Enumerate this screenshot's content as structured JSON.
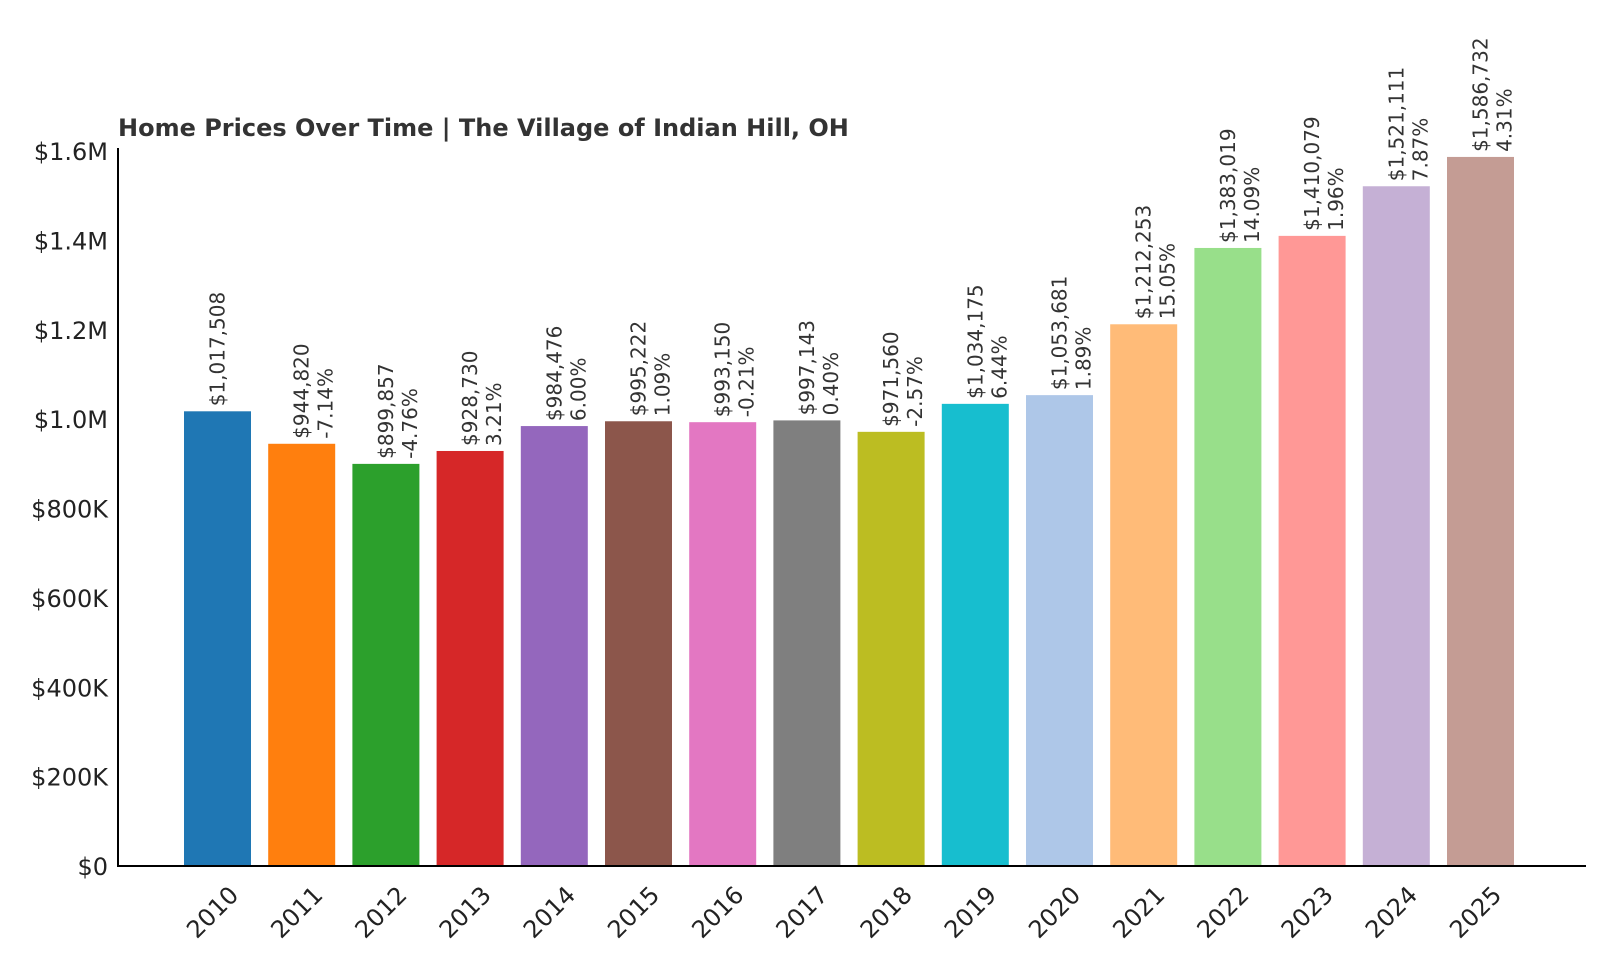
{
  "chart_data": {
    "type": "bar",
    "title": "Home Prices Over Time | The Village of Indian Hill, OH",
    "xlabel": "",
    "ylabel": "",
    "ylim": [
      0,
      1600000
    ],
    "grid": false,
    "legend": "none",
    "categories": [
      "2010",
      "2011",
      "2012",
      "2013",
      "2014",
      "2015",
      "2016",
      "2017",
      "2018",
      "2019",
      "2020",
      "2021",
      "2022",
      "2023",
      "2024",
      "2025"
    ],
    "values": [
      1017508,
      944820,
      899857,
      928730,
      984476,
      995222,
      993150,
      997143,
      971560,
      1034175,
      1053681,
      1212253,
      1383019,
      1410079,
      1521111,
      1586732
    ],
    "value_labels": [
      "$1,017,508",
      "$944,820",
      "$899,857",
      "$928,730",
      "$984,476",
      "$995,222",
      "$993,150",
      "$997,143",
      "$971,560",
      "$1,034,175",
      "$1,053,681",
      "$1,212,253",
      "$1,383,019",
      "$1,410,079",
      "$1,521,111",
      "$1,586,732"
    ],
    "change_labels": [
      "",
      "-7.14%",
      "-4.76%",
      "3.21%",
      "6.00%",
      "1.09%",
      "-0.21%",
      "0.40%",
      "-2.57%",
      "6.44%",
      "1.89%",
      "15.05%",
      "14.09%",
      "1.96%",
      "7.87%",
      "4.31%"
    ],
    "y_ticks": [
      0,
      200000,
      400000,
      600000,
      800000,
      1000000,
      1200000,
      1400000,
      1600000
    ],
    "y_tick_labels": [
      "$0",
      "$200K",
      "$400K",
      "$600K",
      "$800K",
      "$1.0M",
      "$1.2M",
      "$1.4M",
      "$1.6M"
    ],
    "colors": [
      "#1f77b4",
      "#ff7f0e",
      "#2ca02c",
      "#d62728",
      "#9467bd",
      "#8c564b",
      "#e377c2",
      "#7f7f7f",
      "#bcbd22",
      "#17becf",
      "#aec7e8",
      "#ffbb78",
      "#98df8a",
      "#ff9896",
      "#c5b0d5",
      "#c49c94"
    ]
  }
}
